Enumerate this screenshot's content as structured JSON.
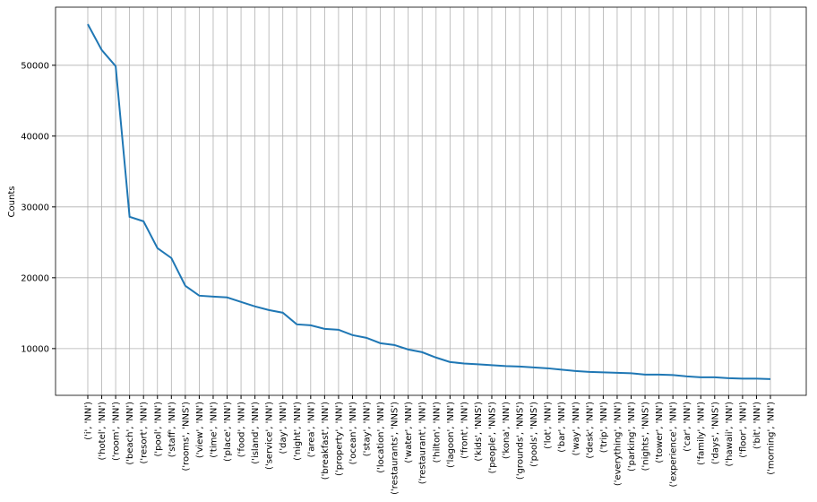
{
  "chart_data": {
    "type": "line",
    "y_label": "Counts",
    "categories": [
      "('i', 'NN')",
      "('hotel', 'NN')",
      "('room', 'NN')",
      "('beach', 'NN')",
      "('resort', 'NN')",
      "('pool', 'NN')",
      "('staff', 'NN')",
      "('rooms', 'NNS')",
      "('view', 'NN')",
      "('time', 'NN')",
      "('place', 'NN')",
      "('food', 'NN')",
      "('island', 'NN')",
      "('service', 'NN')",
      "('day', 'NN')",
      "('night', 'NN')",
      "('area', 'NN')",
      "('breakfast', 'NN')",
      "('property', 'NN')",
      "('ocean', 'NN')",
      "('stay', 'NN')",
      "('location', 'NN')",
      "('restaurants', 'NNS')",
      "('water', 'NN')",
      "('restaurant', 'NN')",
      "('hilton', 'NN')",
      "('lagoon', 'NN')",
      "('front', 'NN')",
      "('kids', 'NNS')",
      "('people', 'NNS')",
      "('kona', 'NN')",
      "('grounds', 'NNS')",
      "('pools', 'NNS')",
      "('lot', 'NN')",
      "('bar', 'NN')",
      "('way', 'NN')",
      "('desk', 'NN')",
      "('trip', 'NN')",
      "('everything', 'NN')",
      "('parking', 'NN')",
      "('nights', 'NNS')",
      "('tower', 'NN')",
      "('experience', 'NN')",
      "('car', 'NN')",
      "('family', 'NN')",
      "('days', 'NNS')",
      "('hawaii', 'NN')",
      "('floor', 'NN')",
      "('bit', 'NN')",
      "('morning', 'NN')"
    ],
    "values": [
      55800,
      52150,
      49870,
      28600,
      27970,
      24180,
      22780,
      18860,
      17470,
      17340,
      17220,
      16580,
      15950,
      15440,
      15060,
      13420,
      13290,
      12780,
      12660,
      11900,
      11520,
      10760,
      10510,
      9870,
      9490,
      8730,
      8100,
      7900,
      7780,
      7660,
      7530,
      7470,
      7340,
      7220,
      7030,
      6840,
      6710,
      6650,
      6580,
      6520,
      6330,
      6330,
      6270,
      6080,
      5950,
      5950,
      5820,
      5760,
      5760,
      5700
    ],
    "color": "#1f77b4",
    "ylim": [
      3400,
      58200
    ],
    "yticks": [
      10000,
      20000,
      30000,
      40000,
      50000
    ],
    "grid": true
  }
}
